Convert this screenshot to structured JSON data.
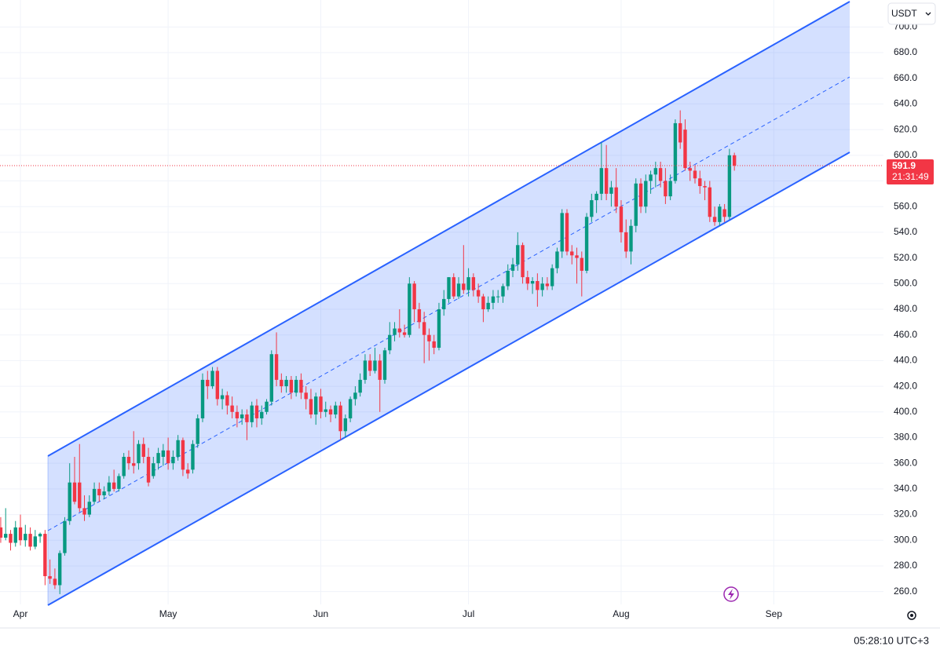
{
  "chart_data": {
    "type": "candlestick",
    "currency": "USDT",
    "categories": [
      null,
      null,
      null,
      null,
      "Apr",
      null,
      null,
      null,
      null,
      null,
      null,
      null,
      null,
      null,
      null,
      null,
      null,
      null,
      null,
      null,
      null,
      null,
      null,
      null,
      null,
      null,
      null,
      null,
      null,
      null,
      null,
      null,
      null,
      null,
      "May",
      null,
      null,
      null,
      null,
      null,
      null,
      null,
      null,
      null,
      null,
      null,
      null,
      null,
      null,
      null,
      null,
      null,
      null,
      null,
      null,
      null,
      null,
      null,
      null,
      null,
      null,
      null,
      null,
      null,
      null,
      "Jun",
      null,
      null,
      null,
      null,
      null,
      null,
      null,
      null,
      null,
      null,
      null,
      null,
      null,
      null,
      null,
      null,
      null,
      null,
      null,
      null,
      null,
      null,
      null,
      null,
      null,
      null,
      null,
      null,
      null,
      "Jul",
      null,
      null,
      null,
      null,
      null,
      null,
      null,
      null,
      null,
      null,
      null,
      null,
      null,
      null,
      null,
      null,
      null,
      null,
      null,
      null,
      null,
      null,
      null,
      null,
      null,
      null,
      null,
      null,
      null,
      null,
      "Aug",
      null,
      null,
      null,
      null,
      null,
      null,
      null,
      null,
      null,
      null,
      null,
      null,
      null,
      null,
      null,
      null,
      null,
      null,
      null,
      null,
      null,
      null,
      null,
      null,
      null,
      null,
      null,
      null,
      null,
      null,
      "Sep"
    ],
    "ohlc": [
      [
        310,
        318,
        298,
        302
      ],
      [
        302,
        325,
        300,
        305
      ],
      [
        305,
        308,
        292,
        298
      ],
      [
        298,
        315,
        295,
        310
      ],
      [
        310,
        320,
        296,
        300
      ],
      [
        300,
        312,
        295,
        305
      ],
      [
        305,
        310,
        292,
        295
      ],
      [
        295,
        308,
        293,
        303
      ],
      [
        303,
        306,
        298,
        305
      ],
      [
        305,
        308,
        265,
        272
      ],
      [
        272,
        285,
        266,
        270
      ],
      [
        270,
        278,
        262,
        265
      ],
      [
        265,
        292,
        258,
        290
      ],
      [
        290,
        318,
        288,
        315
      ],
      [
        315,
        360,
        312,
        345
      ],
      [
        345,
        365,
        328,
        330
      ],
      [
        345,
        375,
        322,
        325
      ],
      [
        325,
        335,
        315,
        320
      ],
      [
        320,
        335,
        318,
        330
      ],
      [
        330,
        345,
        328,
        340
      ],
      [
        340,
        345,
        330,
        335
      ],
      [
        335,
        342,
        332,
        338
      ],
      [
        338,
        350,
        335,
        345
      ],
      [
        345,
        355,
        338,
        340
      ],
      [
        340,
        352,
        338,
        350
      ],
      [
        350,
        368,
        348,
        365
      ],
      [
        365,
        370,
        355,
        360
      ],
      [
        360,
        385,
        352,
        358
      ],
      [
        360,
        378,
        355,
        375
      ],
      [
        375,
        380,
        360,
        365
      ],
      [
        365,
        372,
        342,
        345
      ],
      [
        350,
        365,
        348,
        360
      ],
      [
        360,
        372,
        355,
        368
      ],
      [
        365,
        375,
        358,
        370
      ],
      [
        370,
        380,
        355,
        360
      ],
      [
        360,
        370,
        355,
        365
      ],
      [
        365,
        382,
        362,
        378
      ],
      [
        378,
        380,
        350,
        355
      ],
      [
        355,
        360,
        348,
        352
      ],
      [
        355,
        378,
        352,
        375
      ],
      [
        375,
        398,
        372,
        395
      ],
      [
        395,
        430,
        392,
        425
      ],
      [
        425,
        432,
        410,
        420
      ],
      [
        420,
        435,
        418,
        432
      ],
      [
        432,
        435,
        405,
        410
      ],
      [
        410,
        418,
        402,
        413
      ],
      [
        413,
        416,
        398,
        405
      ],
      [
        405,
        412,
        395,
        400
      ],
      [
        400,
        405,
        388,
        395
      ],
      [
        395,
        402,
        390,
        398
      ],
      [
        398,
        402,
        378,
        392
      ],
      [
        392,
        408,
        388,
        405
      ],
      [
        405,
        410,
        388,
        395
      ],
      [
        395,
        405,
        390,
        400
      ],
      [
        400,
        410,
        398,
        408
      ],
      [
        408,
        448,
        405,
        445
      ],
      [
        445,
        462,
        420,
        425
      ],
      [
        425,
        430,
        415,
        420
      ],
      [
        420,
        428,
        415,
        425
      ],
      [
        425,
        428,
        410,
        415
      ],
      [
        415,
        428,
        412,
        425
      ],
      [
        425,
        430,
        410,
        415
      ],
      [
        415,
        420,
        402,
        410
      ],
      [
        410,
        418,
        395,
        398
      ],
      [
        398,
        415,
        390,
        412
      ],
      [
        412,
        418,
        395,
        400
      ],
      [
        400,
        408,
        396,
        402
      ],
      [
        402,
        405,
        392,
        398
      ],
      [
        398,
        408,
        395,
        405
      ],
      [
        405,
        408,
        378,
        385
      ],
      [
        385,
        398,
        380,
        395
      ],
      [
        395,
        412,
        392,
        410
      ],
      [
        410,
        420,
        405,
        415
      ],
      [
        415,
        430,
        412,
        425
      ],
      [
        425,
        445,
        422,
        440
      ],
      [
        440,
        445,
        428,
        432
      ],
      [
        432,
        450,
        430,
        440
      ],
      [
        440,
        445,
        400,
        425
      ],
      [
        425,
        450,
        422,
        448
      ],
      [
        448,
        470,
        445,
        460
      ],
      [
        460,
        470,
        455,
        465
      ],
      [
        465,
        480,
        458,
        462
      ],
      [
        462,
        468,
        458,
        460
      ],
      [
        460,
        505,
        458,
        500
      ],
      [
        500,
        502,
        470,
        480
      ],
      [
        480,
        485,
        465,
        470
      ],
      [
        470,
        478,
        438,
        460
      ],
      [
        460,
        465,
        440,
        455
      ],
      [
        455,
        460,
        445,
        450
      ],
      [
        450,
        485,
        448,
        480
      ],
      [
        480,
        495,
        475,
        488
      ],
      [
        488,
        505,
        485,
        505
      ],
      [
        505,
        508,
        488,
        490
      ],
      [
        490,
        505,
        488,
        500
      ],
      [
        500,
        530,
        492,
        495
      ],
      [
        495,
        512,
        490,
        505
      ],
      [
        505,
        508,
        490,
        495
      ],
      [
        495,
        500,
        485,
        490
      ],
      [
        490,
        492,
        470,
        480
      ],
      [
        480,
        490,
        478,
        485
      ],
      [
        485,
        495,
        480,
        490
      ],
      [
        490,
        495,
        485,
        490
      ],
      [
        490,
        500,
        485,
        498
      ],
      [
        498,
        515,
        495,
        510
      ],
      [
        510,
        520,
        505,
        515
      ],
      [
        515,
        540,
        510,
        530
      ],
      [
        530,
        532,
        500,
        505
      ],
      [
        505,
        510,
        495,
        500
      ],
      [
        500,
        505,
        492,
        502
      ],
      [
        502,
        508,
        482,
        495
      ],
      [
        495,
        505,
        490,
        500
      ],
      [
        500,
        505,
        495,
        498
      ],
      [
        498,
        515,
        495,
        512
      ],
      [
        512,
        528,
        508,
        525
      ],
      [
        525,
        558,
        520,
        555
      ],
      [
        555,
        558,
        522,
        525
      ],
      [
        525,
        530,
        515,
        522
      ],
      [
        522,
        528,
        500,
        520
      ],
      [
        520,
        525,
        490,
        510
      ],
      [
        510,
        555,
        508,
        552
      ],
      [
        552,
        570,
        548,
        565
      ],
      [
        565,
        572,
        555,
        570
      ],
      [
        570,
        610,
        565,
        590
      ],
      [
        590,
        608,
        565,
        570
      ],
      [
        570,
        580,
        560,
        575
      ],
      [
        575,
        590,
        555,
        560
      ],
      [
        560,
        565,
        532,
        540
      ],
      [
        540,
        550,
        520,
        525
      ],
      [
        525,
        550,
        515,
        545
      ],
      [
        545,
        582,
        540,
        578
      ],
      [
        578,
        582,
        555,
        560
      ],
      [
        560,
        585,
        555,
        580
      ],
      [
        580,
        588,
        570,
        585
      ],
      [
        585,
        595,
        575,
        590
      ],
      [
        590,
        595,
        575,
        580
      ],
      [
        580,
        590,
        562,
        568
      ],
      [
        568,
        585,
        565,
        580
      ],
      [
        580,
        628,
        578,
        625
      ],
      [
        625,
        635,
        605,
        610
      ],
      [
        620,
        628,
        588,
        590
      ],
      [
        590,
        595,
        580,
        588
      ],
      [
        588,
        592,
        578,
        582
      ],
      [
        582,
        588,
        570,
        576
      ],
      [
        576,
        580,
        565,
        575
      ],
      [
        575,
        580,
        548,
        552
      ],
      [
        552,
        560,
        545,
        548
      ],
      [
        548,
        562,
        545,
        560
      ],
      [
        558,
        562,
        548,
        552
      ],
      [
        552,
        605,
        550,
        600
      ],
      [
        600,
        602,
        588,
        591.9
      ],
      null,
      null,
      null,
      null,
      null,
      null,
      null,
      null
    ],
    "up_color": "#089981",
    "down_color": "#f23645",
    "ylim": [
      250,
      721
    ],
    "yticks": [
      {
        "value": 260,
        "label": "260.0"
      },
      {
        "value": 280,
        "label": "280.0"
      },
      {
        "value": 300,
        "label": "300.0"
      },
      {
        "value": 320,
        "label": "320.0"
      },
      {
        "value": 340,
        "label": "340.0"
      },
      {
        "value": 360,
        "label": "360.0"
      },
      {
        "value": 380,
        "label": "380.0"
      },
      {
        "value": 400,
        "label": "400.0"
      },
      {
        "value": 420,
        "label": "420.0"
      },
      {
        "value": 440,
        "label": "440.0"
      },
      {
        "value": 460,
        "label": "460.0"
      },
      {
        "value": 480,
        "label": "480.0"
      },
      {
        "value": 500,
        "label": "500.0"
      },
      {
        "value": 520,
        "label": "520.0"
      },
      {
        "value": 540,
        "label": "540.0"
      },
      {
        "value": 560,
        "label": "560.0"
      },
      {
        "value": 580,
        "label": "580.0"
      },
      {
        "value": 600,
        "label": "600.0"
      },
      {
        "value": 620,
        "label": "620.0"
      },
      {
        "value": 640,
        "label": "640.0"
      },
      {
        "value": 660,
        "label": "660.0"
      },
      {
        "value": 680,
        "label": "680.0"
      },
      {
        "value": 700,
        "label": "700.0"
      }
    ],
    "grid": true,
    "last_price": 591.9,
    "countdown": "21:31:49",
    "clock": "05:28:10 UTC+3"
  }
}
